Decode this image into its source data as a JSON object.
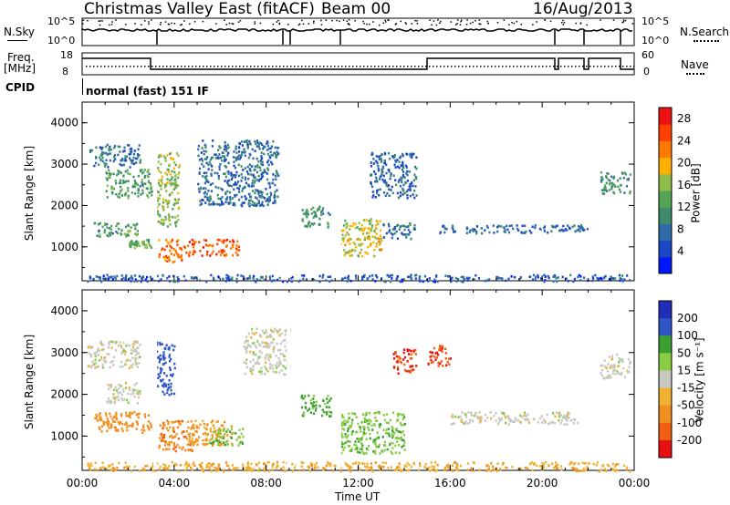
{
  "header": {
    "station": "Christmas Valley East (fitACF)",
    "beam": "Beam 00",
    "date": "16/Aug/2013"
  },
  "top_panels": {
    "nsky_label": "N.Sky",
    "nsky_ticks": [
      "10^5",
      "10^0"
    ],
    "nsearch_label": "N.Search",
    "freq_label_1": "Freq.",
    "freq_label_2": "[MHz]",
    "freq_ticks": [
      "18",
      "8"
    ],
    "nave_ticks": [
      "60",
      "0"
    ],
    "nave_label": "Nave",
    "cpid_label": "CPID",
    "cpid_text": "normal (fast) 151 IF"
  },
  "colors": {
    "power_scale": [
      "#0018ff",
      "#1a46c8",
      "#2e6aa8",
      "#3c8c6c",
      "#55a455",
      "#8fbf4a",
      "#ffb000",
      "#ff7a00",
      "#ff4000",
      "#ee1010"
    ],
    "velocity_scale": [
      "#1f2db8",
      "#2f55c8",
      "#3aa030",
      "#88cc44",
      "#c8c8c0",
      "#f0b030",
      "#f09020",
      "#f06010",
      "#e81010"
    ],
    "ground_scatter": "#bbbbb0"
  },
  "chart_data": [
    {
      "type": "heatmap",
      "name": "power",
      "xlabel": "Time UT",
      "ylabel": "Slant Range [km]",
      "x_ticks": [
        "00:00",
        "04:00",
        "08:00",
        "12:00",
        "16:00",
        "20:00",
        "00:00"
      ],
      "xlim_hours": [
        0,
        24
      ],
      "y_ticks": [
        4000,
        3000,
        2000,
        1000
      ],
      "ylim_km": [
        180,
        4500
      ],
      "colorbar_label": "Power [dB]",
      "colorbar_ticks": [
        28,
        24,
        20,
        16,
        12,
        8,
        4
      ],
      "colorbar_range": [
        0,
        30
      ],
      "regions": [
        {
          "t0": 0.3,
          "t1": 2.5,
          "r0": 2950,
          "r1": 3500,
          "level": 7
        },
        {
          "t0": 1.0,
          "t1": 3.0,
          "r0": 2200,
          "r1": 2900,
          "level": 12
        },
        {
          "t0": 0.5,
          "t1": 2.5,
          "r0": 1250,
          "r1": 1600,
          "level": 12
        },
        {
          "t0": 2.0,
          "t1": 3.0,
          "r0": 1000,
          "r1": 1200,
          "level": 14
        },
        {
          "t0": 3.2,
          "t1": 4.2,
          "r0": 1500,
          "r1": 3300,
          "level": 16
        },
        {
          "t0": 3.3,
          "t1": 4.5,
          "r0": 650,
          "r1": 1200,
          "level": 24
        },
        {
          "t0": 4.5,
          "t1": 6.8,
          "r0": 800,
          "r1": 1200,
          "level": 26
        },
        {
          "t0": 5.0,
          "t1": 8.5,
          "r0": 2000,
          "r1": 3600,
          "level": 7
        },
        {
          "t0": 9.5,
          "t1": 10.8,
          "r0": 1500,
          "r1": 2000,
          "level": 11
        },
        {
          "t0": 11.2,
          "t1": 13.0,
          "r0": 800,
          "r1": 1700,
          "level": 18
        },
        {
          "t0": 13.0,
          "t1": 14.5,
          "r0": 1200,
          "r1": 1600,
          "level": 8
        },
        {
          "t0": 12.5,
          "t1": 14.5,
          "r0": 2200,
          "r1": 3300,
          "level": 6
        },
        {
          "t0": 15.5,
          "t1": 22.0,
          "r0": 1350,
          "r1": 1550,
          "level": 6
        },
        {
          "t0": 22.5,
          "t1": 23.8,
          "r0": 2300,
          "r1": 2850,
          "level": 10
        },
        {
          "t0": 0.2,
          "t1": 23.8,
          "r0": 180,
          "r1": 350,
          "level": 5
        }
      ]
    },
    {
      "type": "heatmap",
      "name": "velocity",
      "xlabel": "Time UT",
      "ylabel": "Slant Range [km]",
      "x_ticks": [
        "00:00",
        "04:00",
        "08:00",
        "12:00",
        "16:00",
        "20:00",
        "00:00"
      ],
      "xlim_hours": [
        0,
        24
      ],
      "y_ticks": [
        4000,
        3000,
        2000,
        1000
      ],
      "ylim_km": [
        180,
        4500
      ],
      "colorbar_label": "Velocity [m s⁻¹]",
      "colorbar_ticks": [
        200,
        100,
        50,
        15,
        -15,
        -50,
        -100,
        -200
      ],
      "regions": [
        {
          "t0": 0.2,
          "t1": 2.5,
          "r0": 2650,
          "r1": 3300,
          "v": 0
        },
        {
          "t0": 1.0,
          "t1": 2.5,
          "r0": 1800,
          "r1": 2300,
          "v": 0
        },
        {
          "t0": 0.5,
          "t1": 3.0,
          "r0": 1100,
          "r1": 1600,
          "v": -80
        },
        {
          "t0": 3.2,
          "t1": 4.0,
          "r0": 2000,
          "r1": 3300,
          "v": 180
        },
        {
          "t0": 3.3,
          "t1": 4.8,
          "r0": 650,
          "r1": 1400,
          "v": -90
        },
        {
          "t0": 4.5,
          "t1": 6.5,
          "r0": 800,
          "r1": 1400,
          "v": -60
        },
        {
          "t0": 5.5,
          "t1": 7.0,
          "r0": 800,
          "r1": 1200,
          "v": 40
        },
        {
          "t0": 7.0,
          "t1": 9.0,
          "r0": 2500,
          "r1": 3600,
          "v": 0
        },
        {
          "t0": 9.5,
          "t1": 10.8,
          "r0": 1500,
          "r1": 2000,
          "v": 60
        },
        {
          "t0": 11.2,
          "t1": 14.0,
          "r0": 600,
          "r1": 1600,
          "v": 40
        },
        {
          "t0": 13.5,
          "t1": 14.5,
          "r0": 2500,
          "r1": 3100,
          "v": -200
        },
        {
          "t0": 15.0,
          "t1": 16.0,
          "r0": 2700,
          "r1": 3200,
          "v": -200
        },
        {
          "t0": 16.0,
          "t1": 21.5,
          "r0": 1300,
          "r1": 1600,
          "v": 0
        },
        {
          "t0": 22.5,
          "t1": 23.8,
          "r0": 2400,
          "r1": 3000,
          "v": 0
        },
        {
          "t0": 0.2,
          "t1": 23.8,
          "r0": 180,
          "r1": 400,
          "v": -40
        }
      ]
    }
  ]
}
